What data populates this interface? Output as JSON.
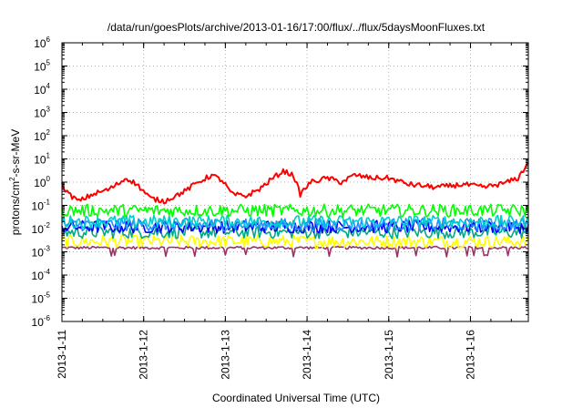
{
  "chart_data": {
    "type": "line",
    "title": "/data/run/goesPlots/archive/2013-01-16/17:00/flux/../flux/5daysMoonFluxes.txt",
    "xlabel": "Coordinated Universal Time (UTC)",
    "ylabel_parts": {
      "base": "protons/cm",
      "sup": "2",
      "rest": "-s-sr-MeV"
    },
    "yscale": "log",
    "ylim": [
      1e-06,
      1000000.0
    ],
    "y_ticks": [
      {
        "base": "10",
        "exp": "-6",
        "value": 1e-06
      },
      {
        "base": "10",
        "exp": "-5",
        "value": 1e-05
      },
      {
        "base": "10",
        "exp": "-4",
        "value": 0.0001
      },
      {
        "base": "10",
        "exp": "-3",
        "value": 0.001
      },
      {
        "base": "10",
        "exp": "-2",
        "value": 0.01
      },
      {
        "base": "10",
        "exp": "-1",
        "value": 0.1
      },
      {
        "base": "10",
        "exp": "0",
        "value": 1
      },
      {
        "base": "10",
        "exp": "1",
        "value": 10
      },
      {
        "base": "10",
        "exp": "2",
        "value": 100
      },
      {
        "base": "10",
        "exp": "3",
        "value": 1000
      },
      {
        "base": "10",
        "exp": "4",
        "value": 10000
      },
      {
        "base": "10",
        "exp": "5",
        "value": 100000
      },
      {
        "base": "10",
        "exp": "6",
        "value": 1000000
      }
    ],
    "xlim": [
      "2013-01-11 00:00",
      "2013-01-16 17:00"
    ],
    "x_ticks": [
      "2013-1-11",
      "2013-1-12",
      "2013-1-13",
      "2013-1-14",
      "2013-1-15",
      "2013-1-16"
    ],
    "grid": true,
    "series": [
      {
        "color": "#ff0000",
        "baseline": 0.6,
        "anchors": [
          [
            "2013-01-11 00:00",
            0.8
          ],
          [
            "2013-01-11 02:00",
            0.3
          ],
          [
            "2013-01-11 05:00",
            0.15
          ],
          [
            "2013-01-11 09:00",
            0.3
          ],
          [
            "2013-01-11 14:00",
            0.5
          ],
          [
            "2013-01-11 19:00",
            1.5
          ],
          [
            "2013-01-11 22:00",
            0.8
          ],
          [
            "2013-01-12 02:00",
            0.2
          ],
          [
            "2013-01-12 06:00",
            0.15
          ],
          [
            "2013-01-12 12:00",
            0.4
          ],
          [
            "2013-01-12 16:00",
            1.0
          ],
          [
            "2013-01-12 20:00",
            2.0
          ],
          [
            "2013-01-12 23:00",
            1.2
          ],
          [
            "2013-01-13 02:00",
            0.3
          ],
          [
            "2013-01-13 06:00",
            0.25
          ],
          [
            "2013-01-13 10:00",
            0.5
          ],
          [
            "2013-01-13 14:00",
            1.5
          ],
          [
            "2013-01-13 17:00",
            3.0
          ],
          [
            "2013-01-13 20:00",
            2.0
          ],
          [
            "2013-01-13 22:00",
            0.3
          ],
          [
            "2013-01-14 01:00",
            1.0
          ],
          [
            "2013-01-14 06:00",
            1.5
          ],
          [
            "2013-01-14 10:00",
            1.0
          ],
          [
            "2013-01-14 14:00",
            2.0
          ],
          [
            "2013-01-14 19:00",
            1.5
          ],
          [
            "2013-01-15 00:00",
            1.5
          ],
          [
            "2013-01-15 06:00",
            0.8
          ],
          [
            "2013-01-15 14:00",
            0.6
          ],
          [
            "2013-01-15 22:00",
            0.8
          ],
          [
            "2013-01-16 04:00",
            0.6
          ],
          [
            "2013-01-16 10:00",
            0.9
          ],
          [
            "2013-01-16 14:00",
            1.5
          ],
          [
            "2013-01-16 17:00",
            7.0
          ]
        ]
      },
      {
        "color": "#00ff00",
        "baseline": 0.06
      },
      {
        "color": "#00cccc",
        "baseline": 0.02
      },
      {
        "color": "#1e90ff",
        "baseline": 0.015
      },
      {
        "color": "#0000ff",
        "baseline": 0.012
      },
      {
        "color": "#00aa88",
        "baseline": 0.007
      },
      {
        "color": "#ffff00",
        "baseline": 0.0028
      },
      {
        "color": "#993366",
        "baseline": 0.0015
      }
    ]
  }
}
